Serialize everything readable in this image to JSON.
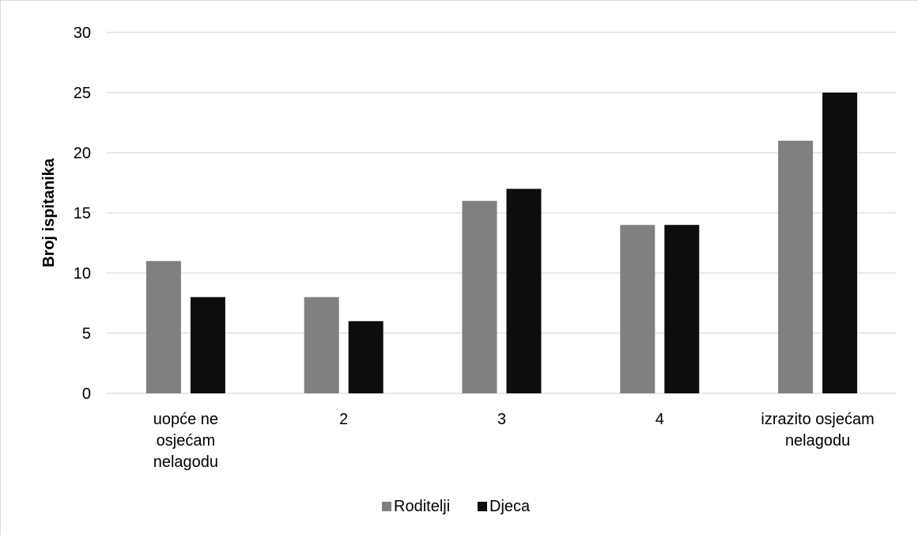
{
  "chart_data": {
    "type": "bar",
    "categories": [
      [
        "uopće ne",
        "osjećam",
        "nelagodu"
      ],
      [
        "2"
      ],
      [
        "3"
      ],
      [
        "4"
      ],
      [
        "izrazito osjećam",
        "nelagodu"
      ]
    ],
    "series": [
      {
        "name": "Roditelji",
        "values": [
          11,
          8,
          16,
          14,
          21
        ],
        "color": "#808080"
      },
      {
        "name": "Djeca",
        "values": [
          8,
          6,
          17,
          14,
          25
        ],
        "color": "#0d0d0d"
      }
    ],
    "xlabel": "",
    "ylabel": "Broj ispitanika",
    "ylim": [
      0,
      30
    ],
    "yticks": [
      0,
      5,
      10,
      15,
      20,
      25,
      30
    ],
    "grid": true,
    "gridColor": "#d9d9d9",
    "legend": "bottom"
  }
}
